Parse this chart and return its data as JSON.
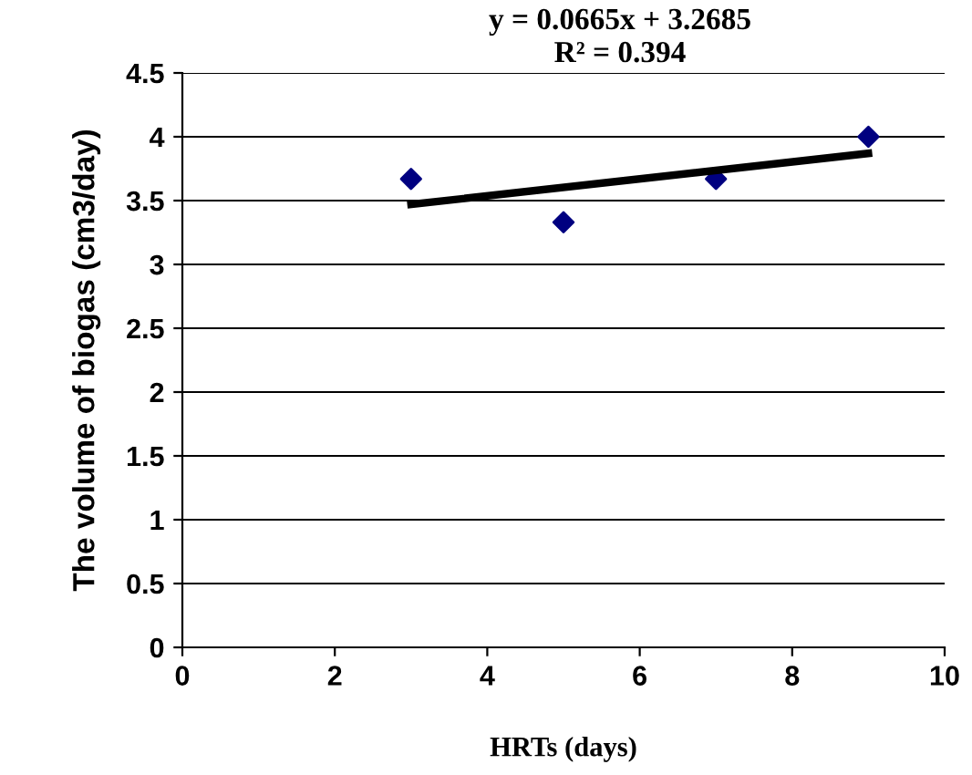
{
  "chart_data": {
    "type": "scatter",
    "xlabel": "HRTs (days)",
    "ylabel": "The volume of biogas (cm3/day)",
    "annotations": [
      "y = 0.0665x + 3.2685",
      "R² = 0.394"
    ],
    "series": [
      {
        "type": "scatter",
        "color": "#000080",
        "marker": "diamond",
        "x": [
          3,
          5,
          7,
          9
        ],
        "values": [
          3.67,
          3.33,
          3.67,
          4.0
        ]
      },
      {
        "type": "line",
        "color": "#000000",
        "marker": "none",
        "line_style": "solid",
        "x": [
          3,
          9
        ],
        "values": [
          3.47,
          3.87
        ]
      }
    ],
    "xlim": [
      0,
      10
    ],
    "xticks": [
      0,
      2,
      4,
      6,
      8,
      10
    ],
    "ylim": [
      0,
      4.5
    ],
    "yticks": [
      0,
      0.5,
      1,
      1.5,
      2,
      2.5,
      3,
      3.5,
      4,
      4.5
    ],
    "grid": "y",
    "legend": false
  }
}
